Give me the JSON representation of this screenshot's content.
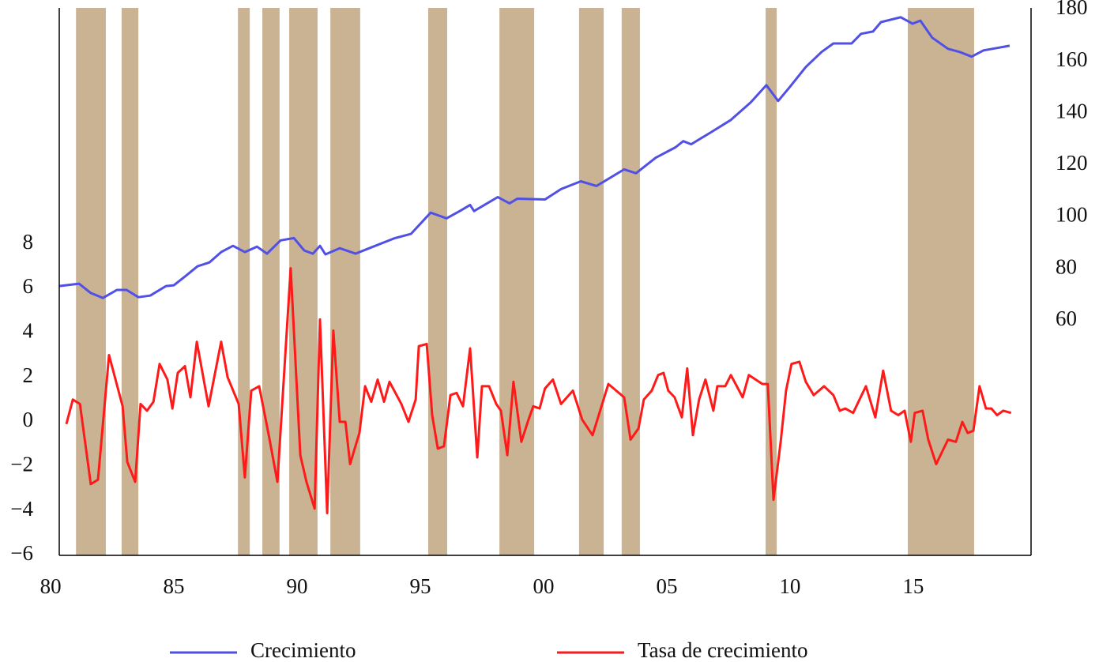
{
  "chart_data": {
    "type": "line",
    "xlim": [
      1980.35,
      2019.78
    ],
    "xticks": [
      {
        "value": 1980,
        "label": "80"
      },
      {
        "value": 1985,
        "label": "85"
      },
      {
        "value": 1990,
        "label": "90"
      },
      {
        "value": 1995,
        "label": "95"
      },
      {
        "value": 2000,
        "label": "00"
      },
      {
        "value": 2005,
        "label": "05"
      },
      {
        "value": 2010,
        "label": "10"
      },
      {
        "value": 2015,
        "label": "15"
      }
    ],
    "ylim": [
      -6,
      18.6
    ],
    "yticks": [
      {
        "value": -6,
        "label": "−6"
      },
      {
        "value": -4,
        "label": "−4"
      },
      {
        "value": -2,
        "label": "−2"
      },
      0,
      2,
      4,
      6,
      8
    ],
    "y2lim": [
      -30.6,
      180.6
    ],
    "y2ticks": [
      60,
      80,
      100,
      120,
      140,
      160,
      180
    ],
    "band_color": "#c9b393",
    "bands": [
      [
        1981.03,
        1982.24
      ],
      [
        1982.88,
        1983.56
      ],
      [
        1987.6,
        1988.08
      ],
      [
        1988.59,
        1989.29
      ],
      [
        1989.68,
        1990.83
      ],
      [
        1991.35,
        1992.56
      ],
      [
        1995.32,
        1996.09
      ],
      [
        1998.21,
        1999.62
      ],
      [
        2001.44,
        2002.44
      ],
      [
        2003.17,
        2003.91
      ],
      [
        2009.01,
        2009.46
      ],
      [
        2014.78,
        2017.47
      ]
    ],
    "legend": "bottom",
    "series": [
      {
        "name": "Crecimiento",
        "color": "#5050e6",
        "axis": "y2",
        "x": [
          1980.35,
          1981.15,
          1981.63,
          1982.12,
          1982.69,
          1983.08,
          1983.56,
          1984.04,
          1984.68,
          1985.0,
          1985.48,
          1985.96,
          1986.44,
          1986.92,
          1987.4,
          1987.88,
          1988.37,
          1988.78,
          1989.33,
          1989.87,
          1990.29,
          1990.64,
          1990.93,
          1991.15,
          1991.73,
          1992.37,
          1993.01,
          1993.97,
          1994.62,
          1995.42,
          1996.06,
          1996.6,
          1997.02,
          1997.18,
          1998.14,
          1998.62,
          1998.94,
          2000.06,
          2000.71,
          2001.51,
          2002.15,
          2003.27,
          2003.75,
          2004.55,
          2005.35,
          2005.67,
          2005.99,
          2006.79,
          2007.6,
          2008.4,
          2009.04,
          2009.52,
          2010.0,
          2010.64,
          2011.28,
          2011.76,
          2012.5,
          2012.88,
          2013.37,
          2013.69,
          2014.49,
          2014.97,
          2015.29,
          2015.77,
          2016.41,
          2016.89,
          2017.37,
          2017.85,
          2018.91
        ],
        "values": [
          73.3,
          74.2,
          70.6,
          68.7,
          71.8,
          71.8,
          69.0,
          69.6,
          73.3,
          73.6,
          77.2,
          80.9,
          82.4,
          86.4,
          88.8,
          86.4,
          88.5,
          85.8,
          90.9,
          91.8,
          87.0,
          85.8,
          88.8,
          85.5,
          87.9,
          85.8,
          88.2,
          91.8,
          93.4,
          101.6,
          99.4,
          102.2,
          104.6,
          102.2,
          107.6,
          105.2,
          107.0,
          106.7,
          110.7,
          113.7,
          111.9,
          118.3,
          116.8,
          122.8,
          126.8,
          129.2,
          128.0,
          132.6,
          137.4,
          144.1,
          150.8,
          144.7,
          150.2,
          157.8,
          163.6,
          166.9,
          166.9,
          170.6,
          171.5,
          175.1,
          177.0,
          174.5,
          175.7,
          169.1,
          164.8,
          163.6,
          161.8,
          164.2,
          166.0
        ]
      },
      {
        "name": "Tasa de crecimiento",
        "color": "#ff1a1a",
        "axis": "y",
        "x": [
          1980.64,
          1980.9,
          1981.19,
          1981.63,
          1981.92,
          1982.37,
          1982.92,
          1983.11,
          1983.43,
          1983.65,
          1983.91,
          1984.17,
          1984.42,
          1984.74,
          1984.94,
          1985.16,
          1985.45,
          1985.67,
          1985.93,
          1986.41,
          1986.92,
          1987.18,
          1987.63,
          1987.88,
          1988.14,
          1988.46,
          1988.85,
          1989.2,
          1989.74,
          1990.13,
          1990.38,
          1990.71,
          1990.93,
          1991.22,
          1991.47,
          1991.73,
          1991.96,
          1992.15,
          1992.53,
          1992.76,
          1993.01,
          1993.27,
          1993.53,
          1993.75,
          1994.23,
          1994.52,
          1994.81,
          1994.94,
          1995.26,
          1995.48,
          1995.71,
          1995.96,
          1996.22,
          1996.47,
          1996.73,
          1997.02,
          1997.31,
          1997.5,
          1997.79,
          1998.08,
          1998.27,
          1998.53,
          1998.78,
          1999.1,
          1999.36,
          1999.58,
          1999.84,
          2000.06,
          2000.38,
          2000.71,
          2001.19,
          2001.57,
          2001.99,
          2002.63,
          2003.27,
          2003.53,
          2003.85,
          2004.07,
          2004.39,
          2004.65,
          2004.87,
          2005.06,
          2005.32,
          2005.61,
          2005.83,
          2006.06,
          2006.31,
          2006.57,
          2006.89,
          2007.05,
          2007.37,
          2007.6,
          2008.08,
          2008.33,
          2008.88,
          2009.1,
          2009.33,
          2009.62,
          2009.84,
          2010.06,
          2010.38,
          2010.64,
          2010.96,
          2011.38,
          2011.76,
          2012.02,
          2012.24,
          2012.56,
          2013.08,
          2013.46,
          2013.78,
          2014.1,
          2014.39,
          2014.65,
          2014.9,
          2015.06,
          2015.38,
          2015.61,
          2015.93,
          2016.41,
          2016.73,
          2016.99,
          2017.21,
          2017.44,
          2017.69,
          2017.95,
          2018.17,
          2018.4,
          2018.65,
          2018.97
        ],
        "values": [
          -0.1,
          1.0,
          0.8,
          -2.8,
          -2.6,
          3.0,
          0.7,
          -1.8,
          -2.7,
          0.8,
          0.5,
          0.9,
          2.6,
          1.9,
          0.6,
          2.2,
          2.5,
          1.1,
          3.6,
          0.7,
          3.6,
          2.0,
          0.8,
          -2.5,
          1.4,
          1.6,
          -0.6,
          -2.7,
          6.9,
          -1.5,
          -2.7,
          -3.9,
          4.6,
          -4.1,
          4.1,
          0.0,
          0.0,
          -1.9,
          -0.5,
          1.6,
          0.9,
          1.9,
          0.9,
          1.8,
          0.8,
          0.0,
          1.0,
          3.4,
          3.5,
          0.3,
          -1.2,
          -1.1,
          1.2,
          1.3,
          0.7,
          3.3,
          -1.6,
          1.6,
          1.6,
          0.8,
          0.5,
          -1.5,
          1.8,
          -0.9,
          0.0,
          0.7,
          0.6,
          1.5,
          1.9,
          0.8,
          1.4,
          0.1,
          -0.6,
          1.7,
          1.1,
          -0.8,
          -0.3,
          1.0,
          1.4,
          2.1,
          2.2,
          1.4,
          1.1,
          0.2,
          2.4,
          -0.6,
          1.0,
          1.9,
          0.5,
          1.6,
          1.6,
          2.1,
          1.1,
          2.1,
          1.7,
          1.7,
          -3.5,
          -0.9,
          1.4,
          2.6,
          2.7,
          1.8,
          1.2,
          1.6,
          1.2,
          0.5,
          0.6,
          0.4,
          1.6,
          0.2,
          2.3,
          0.5,
          0.3,
          0.5,
          -0.9,
          0.4,
          0.5,
          -0.8,
          -1.9,
          -0.8,
          -0.9,
          0.0,
          -0.5,
          -0.4,
          1.6,
          0.6,
          0.6,
          0.3,
          0.5,
          0.4
        ]
      }
    ]
  }
}
